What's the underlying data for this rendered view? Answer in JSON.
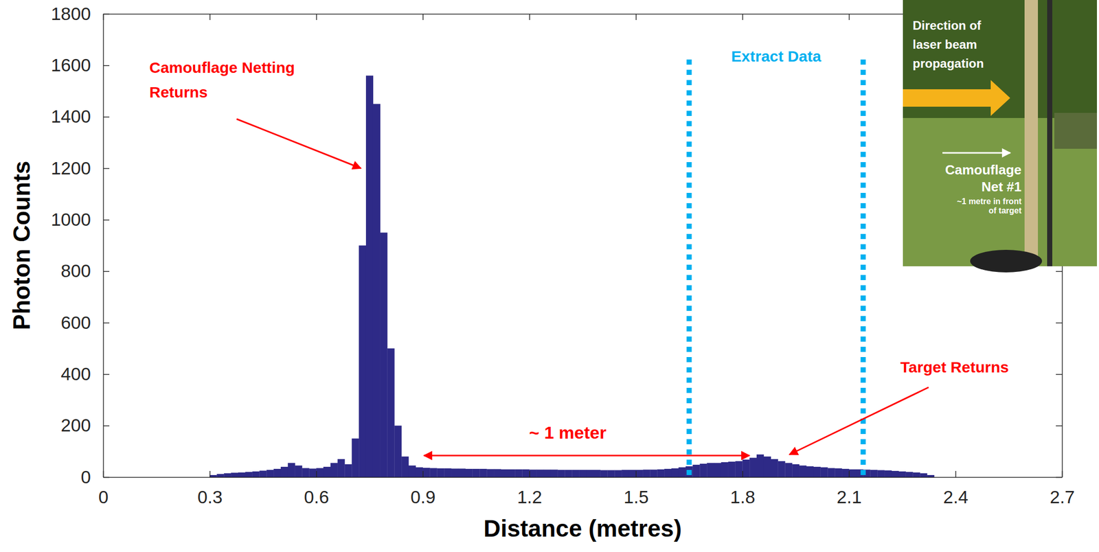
{
  "chart_data": {
    "type": "histogram",
    "x_label": "Distance (metres)",
    "y_label": "Photon Counts",
    "bins": [
      0.3,
      0.32,
      0.34,
      0.36,
      0.38,
      0.4,
      0.42,
      0.44,
      0.46,
      0.48,
      0.5,
      0.52,
      0.54,
      0.56,
      0.58,
      0.6,
      0.62,
      0.64,
      0.66,
      0.68,
      0.7,
      0.72,
      0.74,
      0.76,
      0.78,
      0.8,
      0.82,
      0.84,
      0.86,
      0.88,
      0.9,
      0.92,
      0.94,
      0.96,
      0.98,
      1,
      1.02,
      1.04,
      1.06,
      1.08,
      1.1,
      1.12,
      1.14,
      1.16,
      1.18,
      1.2,
      1.22,
      1.24,
      1.26,
      1.28,
      1.3,
      1.32,
      1.34,
      1.36,
      1.38,
      1.4,
      1.42,
      1.44,
      1.46,
      1.48,
      1.5,
      1.52,
      1.54,
      1.56,
      1.58,
      1.6,
      1.62,
      1.64,
      1.66,
      1.68,
      1.7,
      1.72,
      1.74,
      1.76,
      1.78,
      1.8,
      1.82,
      1.84,
      1.86,
      1.88,
      1.9,
      1.92,
      1.94,
      1.96,
      1.98,
      2,
      2.02,
      2.04,
      2.06,
      2.08,
      2.1,
      2.12,
      2.14,
      2.16,
      2.18,
      2.2,
      2.22,
      2.24,
      2.26,
      2.28,
      2.3,
      2.32,
      2.34
    ],
    "values": [
      8,
      12,
      15,
      17,
      18,
      20,
      22,
      25,
      28,
      32,
      40,
      55,
      45,
      35,
      33,
      35,
      40,
      55,
      70,
      50,
      150,
      900,
      1560,
      1450,
      950,
      500,
      200,
      80,
      45,
      38,
      36,
      35,
      34,
      34,
      33,
      33,
      32,
      32,
      32,
      31,
      31,
      30,
      30,
      30,
      30,
      29,
      29,
      29,
      29,
      28,
      28,
      28,
      28,
      28,
      28,
      27,
      27,
      27,
      28,
      28,
      28,
      29,
      29,
      30,
      32,
      34,
      38,
      42,
      48,
      52,
      55,
      55,
      58,
      60,
      62,
      68,
      75,
      88,
      80,
      70,
      62,
      55,
      50,
      45,
      42,
      40,
      38,
      35,
      34,
      32,
      30,
      30,
      29,
      28,
      27,
      26,
      24,
      22,
      20,
      18,
      15,
      8
    ],
    "color": "#2e2a87",
    "xlim": [
      0,
      2.7
    ],
    "xticks": [
      0,
      0.3,
      0.6,
      0.9,
      1.2,
      1.5,
      1.8,
      2.1,
      2.4,
      2.7
    ],
    "ylim": [
      0,
      1800
    ],
    "yticks": [
      0,
      200,
      400,
      600,
      800,
      1000,
      1200,
      1400,
      1600,
      1800
    ],
    "grid": false,
    "annotations": {
      "netting": [
        "Camouflage Netting",
        "Returns"
      ],
      "target": "Target Returns",
      "span": "~ 1 meter",
      "extract": "Extract Data",
      "extract_range": [
        1.65,
        2.14
      ]
    }
  },
  "inset": {
    "arrow_label": [
      "Direction of",
      "laser beam",
      "propagation"
    ],
    "net_label": [
      "Camouflage",
      "Net #1"
    ],
    "net_note": [
      "~1 metre in front",
      "of target"
    ]
  }
}
